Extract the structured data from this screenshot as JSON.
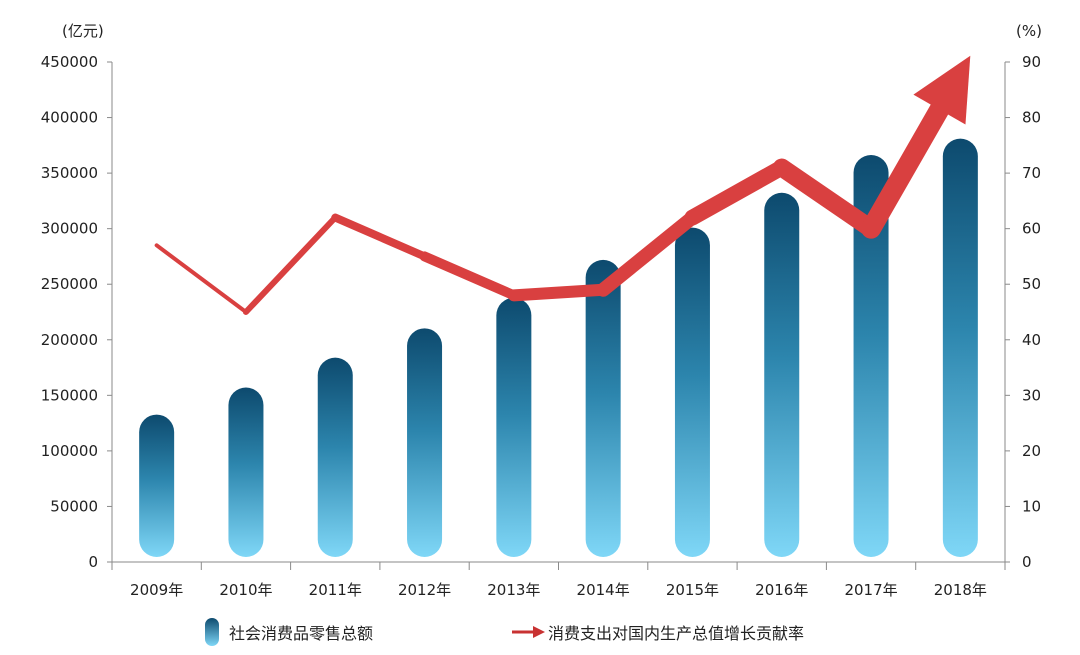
{
  "chart_data": {
    "type": "bar",
    "categories": [
      "2009年",
      "2010年",
      "2011年",
      "2012年",
      "2013年",
      "2014年",
      "2015年",
      "2016年",
      "2017年",
      "2018年"
    ],
    "series": [
      {
        "name": "社会消费品零售总额",
        "type": "bar",
        "axis": "left",
        "values": [
          132678,
          156998,
          183919,
          210307,
          237810,
          271896,
          300931,
          332316,
          366262,
          380987
        ],
        "color_top": "#0d4a6e",
        "color_bottom": "#7fd7f7"
      },
      {
        "name": "消费支出对国内生产总值增长贡献率",
        "type": "line",
        "axis": "right",
        "values": [
          57,
          45,
          62,
          55,
          48,
          49,
          62,
          71,
          60,
          88
        ],
        "color": "#d94040"
      }
    ],
    "left_axis": {
      "unit": "(亿元)",
      "min": 0,
      "max": 450000,
      "step": 50000,
      "ticks": [
        "0",
        "50000",
        "100000",
        "150000",
        "200000",
        "250000",
        "300000",
        "350000",
        "400000",
        "450000"
      ]
    },
    "right_axis": {
      "unit": "(%)",
      "min": 0,
      "max": 90,
      "step": 10,
      "ticks": [
        "0",
        "10",
        "20",
        "30",
        "40",
        "50",
        "60",
        "70",
        "80",
        "90"
      ]
    },
    "legend_position": "bottom",
    "grid": false
  }
}
